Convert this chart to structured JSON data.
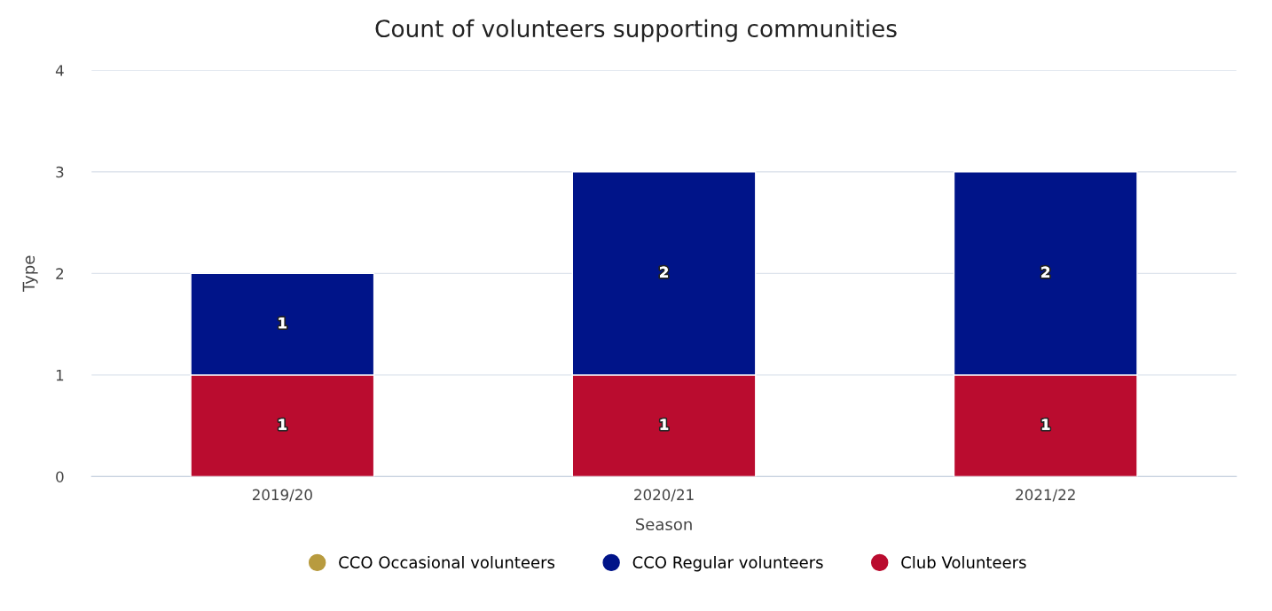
{
  "chart_data": {
    "type": "bar",
    "title": "Count of volunteers supporting communities",
    "xlabel": "Season",
    "ylabel": "Type",
    "categories": [
      "2019/20",
      "2020/21",
      "2021/22"
    ],
    "series": [
      {
        "name": "Club Volunteers",
        "color": "#ba0c2f",
        "values": [
          1,
          1,
          1
        ]
      },
      {
        "name": "CCO Regular volunteers",
        "color": "#001489",
        "values": [
          1,
          2,
          2
        ]
      },
      {
        "name": "CCO Occasional volunteers",
        "color": "#b89b3f",
        "values": [
          null,
          null,
          null
        ]
      }
    ],
    "stacked": true,
    "ylim": [
      0,
      4
    ],
    "yticks": [
      0,
      1,
      2,
      3,
      4
    ],
    "grid": "y",
    "legend": "bottom",
    "data_labels": true
  }
}
